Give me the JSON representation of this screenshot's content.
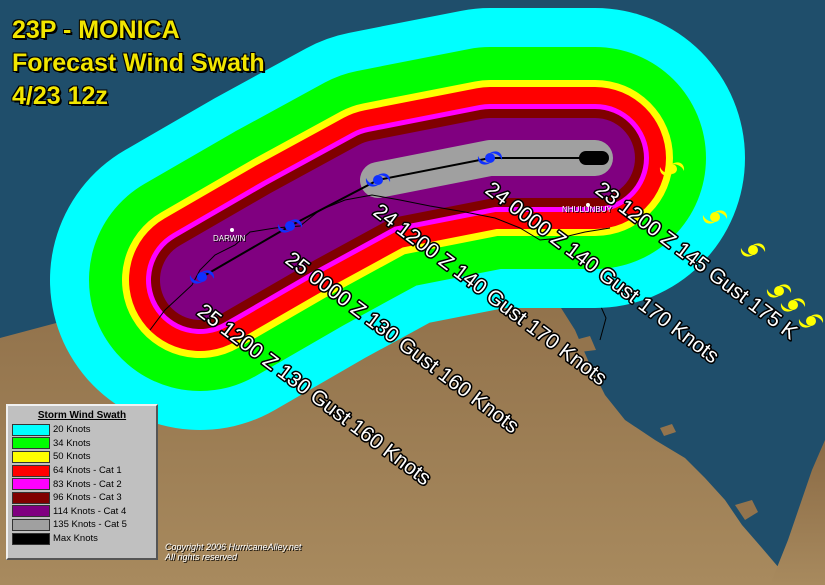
{
  "header": {
    "line1": "23P - MONICA",
    "line2": "Forecast Wind Swath",
    "line3": "4/23  12z"
  },
  "legend": {
    "title": "Storm Wind Swath",
    "items": [
      {
        "label": "20 Knots",
        "color": "#00ffff"
      },
      {
        "label": "34 Knots",
        "color": "#00ff00"
      },
      {
        "label": "50 Knots",
        "color": "#ffff00"
      },
      {
        "label": "64 Knots - Cat 1",
        "color": "#ff0000"
      },
      {
        "label": "83 Knots - Cat 2",
        "color": "#ff00ff"
      },
      {
        "label": "96 Knots - Cat 3",
        "color": "#800000"
      },
      {
        "label": "114 Knots - Cat 4",
        "color": "#800080"
      },
      {
        "label": "135 Knots - Cat 5",
        "color": "#a0a0a0"
      },
      {
        "label": "Max Knots",
        "color": "#000000"
      }
    ]
  },
  "places": {
    "darwin": "DARWIN",
    "nhulunbuy": "NHULUNBUY"
  },
  "forecast_points": [
    {
      "label": "23 1200 Z 145 Gust 175 K",
      "icon": "hurricane-black-icon"
    },
    {
      "label": "24 0000 Z 140 Gust 170 Knots",
      "icon": "hurricane-blue-icon"
    },
    {
      "label": "24 1200 Z 140 Gust 170 Knots",
      "icon": "hurricane-blue-icon"
    },
    {
      "label": "25 0000 Z 130 Gust 160 Knots",
      "icon": "hurricane-blue-icon"
    },
    {
      "label": "25 1200 Z 130 Gust 160 Knots",
      "icon": "hurricane-blue-icon"
    }
  ],
  "past_positions_icon": "hurricane-yellow-icon",
  "copyright": {
    "line1": "Copyright 2006 HurricaneAlley.net",
    "line2": "All rights reserved"
  }
}
